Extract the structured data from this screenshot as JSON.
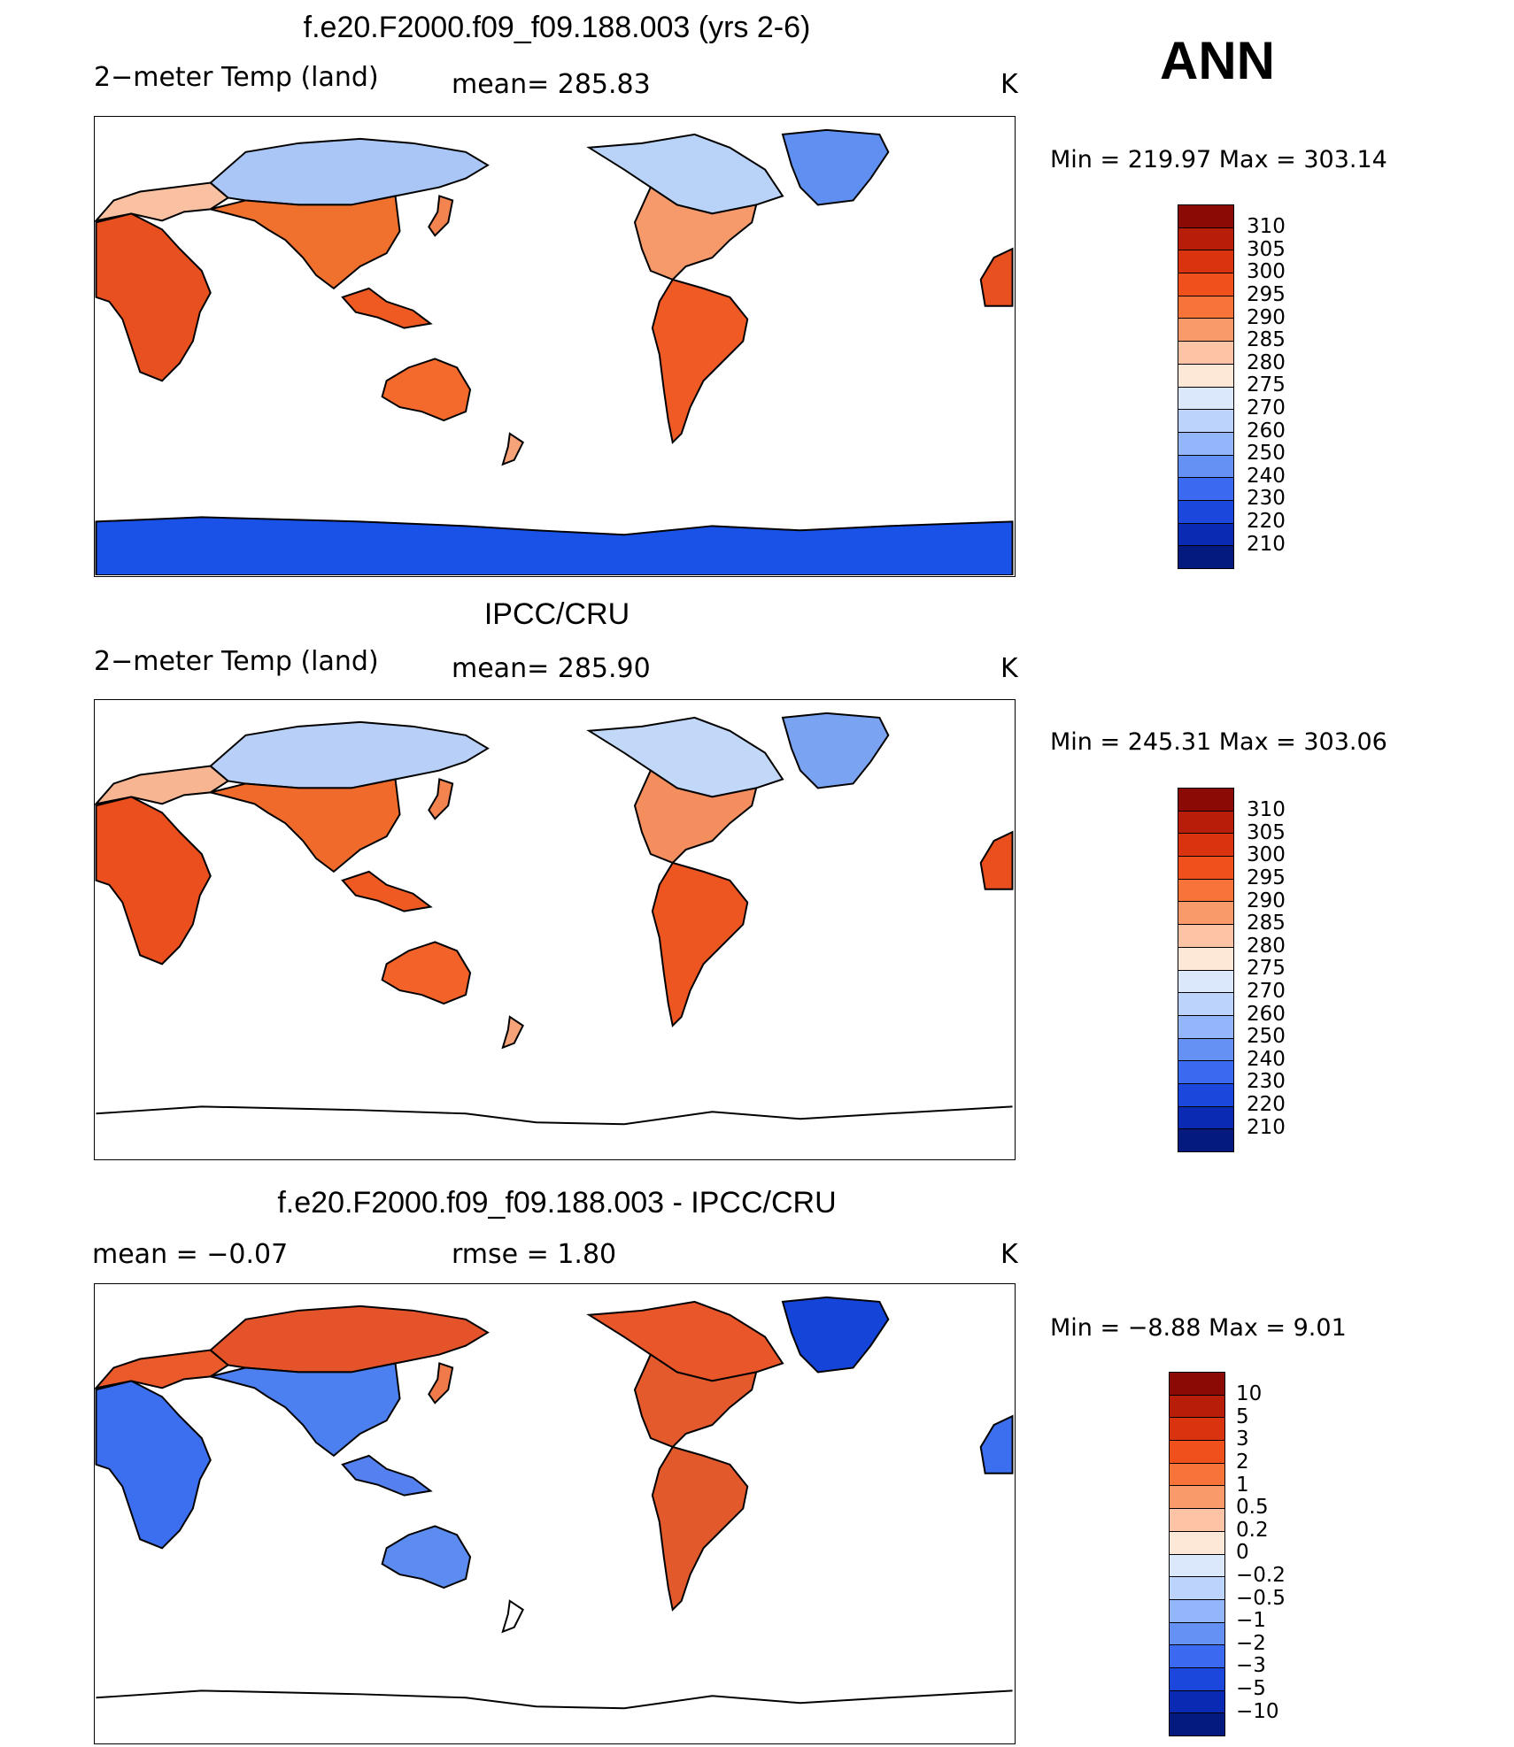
{
  "season": "ANN",
  "panels": [
    {
      "title": "f.e20.F2000.f09_f09.188.003 (yrs 2-6)",
      "left_label": "2−meter Temp (land)",
      "center_label": "mean=  285.83",
      "units": "K",
      "minmax": "Min  =  219.97  Max  =  303.14",
      "colorbar_labels": [
        "310",
        "305",
        "300",
        "295",
        "290",
        "285",
        "280",
        "275",
        "270",
        "260",
        "250",
        "240",
        "230",
        "220",
        "210"
      ],
      "colors": {
        "africa": "#e9501f",
        "samerica": "#f05a24",
        "europe": "#f9c0a2",
        "asia_n": "#a9c6f7",
        "asia_s": "#f0702e",
        "namer_n": "#b9d2f7",
        "namer_s": "#f79a6b",
        "australia": "#f46a2c",
        "greenland": "#5f8ff0",
        "antarctica": "#1a52e8",
        "nz": "#f7a37a",
        "japan": "#f38450",
        "indonesia": "#ee5a22"
      }
    },
    {
      "title": "IPCC/CRU",
      "left_label": "2−meter Temp (land)",
      "center_label": "mean=  285.90",
      "units": "K",
      "minmax": "Min  =  245.31  Max  =  303.06",
      "colorbar_labels": [
        "310",
        "305",
        "300",
        "295",
        "290",
        "285",
        "280",
        "275",
        "270",
        "260",
        "250",
        "240",
        "230",
        "220",
        "210"
      ],
      "colors": {
        "africa": "#ea4f1d",
        "samerica": "#ee5621",
        "europe": "#f8b592",
        "asia_n": "#b8d0f8",
        "asia_s": "#f06b2b",
        "namer_n": "#c2d8f8",
        "namer_s": "#f58e5e",
        "australia": "#f26229",
        "greenland": "#7aa3f2",
        "antarctica": "#ffffff",
        "nz": "#f7a37a",
        "japan": "#f38450",
        "indonesia": "#ee5a22"
      }
    },
    {
      "title": "f.e20.F2000.f09_f09.188.003 - IPCC/CRU",
      "left_label": "mean  =     −0.07",
      "center_label": "rmse  =      1.80",
      "units": "K",
      "minmax": "Min  =     −8.88  Max  =       9.01",
      "colorbar_labels": [
        "10",
        "5",
        "3",
        "2",
        "1",
        "0.5",
        "0.2",
        "0",
        "−0.2",
        "−0.5",
        "−1",
        "−2",
        "−3",
        "−5",
        "−10"
      ],
      "colors": {
        "africa": "#3b6ff0",
        "samerica": "#e25a2c",
        "europe": "#eb5a2a",
        "asia_n": "#e4532a",
        "asia_s": "#4c7ff0",
        "namer_n": "#e9562a",
        "namer_s": "#e55a2c",
        "australia": "#5c8cf0",
        "greenland": "#1444d8",
        "antarctica": "#ffffff",
        "nz": "#ffffff",
        "japan": "#f07a4a",
        "indonesia": "#5580f0"
      }
    }
  ],
  "colorbar_colors": [
    "#8c0a05",
    "#b81d0a",
    "#d9330f",
    "#f0501c",
    "#f7733a",
    "#f99a6a",
    "#fcc3a5",
    "#fde8d8",
    "#dbe8fc",
    "#bcd3fb",
    "#93b5f9",
    "#6591f4",
    "#3b6af0",
    "#1c47dc",
    "#0b2ab4",
    "#041a7e"
  ],
  "diff_colorbar_colors": [
    "#8c0a05",
    "#b81d0a",
    "#d9330f",
    "#f0501c",
    "#f7733a",
    "#f99a6a",
    "#fcc3a5",
    "#fde8d8",
    "#dbe8fc",
    "#bcd3fb",
    "#93b5f9",
    "#6591f4",
    "#3b6af0",
    "#1c47dc",
    "#0b2ab4",
    "#041a7e"
  ]
}
